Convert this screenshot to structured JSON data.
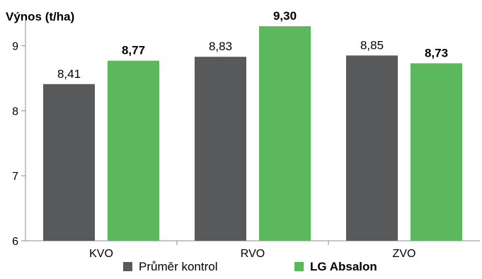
{
  "chart_data": {
    "type": "bar",
    "ylabel": "Výnos (t/ha)",
    "categories": [
      "KVO",
      "RVO",
      "ZVO"
    ],
    "ylim": [
      6,
      9.3
    ],
    "yticks": [
      6,
      7,
      8,
      9
    ],
    "grid": false,
    "legend_position": "bottom",
    "series": [
      {
        "name": "Průměr kontrol",
        "color": "#58595b",
        "values": [
          8.41,
          8.83,
          8.85
        ],
        "labels": [
          "8,41",
          "8,83",
          "8,85"
        ],
        "label_bold": false
      },
      {
        "name": "LG Absalon",
        "color": "#5cb85c",
        "values": [
          8.77,
          9.3,
          8.73
        ],
        "labels": [
          "8,77",
          "9,30",
          "8,73"
        ],
        "label_bold": true
      }
    ]
  }
}
